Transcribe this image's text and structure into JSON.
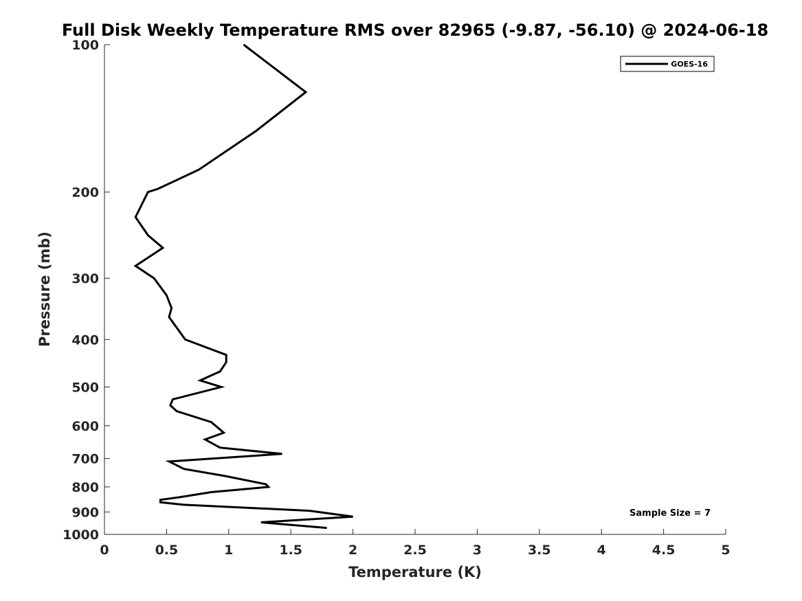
{
  "chart_data": {
    "type": "line",
    "title": "Full Disk Weekly Temperature RMS over 82965 (-9.87, -56.10) @ 2024-06-18",
    "xlabel": "Temperature (K)",
    "ylabel": "Pressure (mb)",
    "xlim": [
      0,
      5
    ],
    "ylim": [
      100,
      1000
    ],
    "y_scale": "log",
    "y_reversed": true,
    "x_ticks": [
      "0",
      "0.5",
      "1",
      "1.5",
      "2",
      "2.5",
      "3",
      "3.5",
      "4",
      "4.5",
      "5"
    ],
    "y_ticks": [
      "100",
      "200",
      "300",
      "400",
      "500",
      "600",
      "700",
      "800",
      "900",
      "1000"
    ],
    "grid": false,
    "legend_position": "top-right",
    "series": [
      {
        "name": "GOES-16",
        "color": "#000000",
        "x": [
          1.12,
          1.62,
          1.22,
          0.76,
          0.43,
          0.35,
          0.25,
          0.35,
          0.47,
          0.25,
          0.4,
          0.5,
          0.54,
          0.52,
          0.65,
          0.98,
          0.98,
          0.93,
          0.77,
          0.94,
          0.55,
          0.53,
          0.58,
          0.86,
          0.96,
          0.81,
          0.93,
          1.43,
          0.52,
          0.64,
          0.97,
          1.3,
          1.32,
          0.86,
          0.6,
          0.45,
          0.45,
          0.64,
          1.65,
          2.0,
          1.26,
          1.79
        ],
        "y": [
          100,
          125,
          150,
          180,
          197,
          200,
          225,
          245,
          260,
          283,
          300,
          325,
          345,
          360,
          400,
          430,
          445,
          465,
          485,
          500,
          530,
          545,
          560,
          590,
          620,
          640,
          665,
          685,
          710,
          735,
          760,
          790,
          800,
          820,
          840,
          850,
          860,
          870,
          895,
          920,
          945,
          970
        ]
      }
    ],
    "annotations": [
      "Sample Size = 7"
    ]
  }
}
